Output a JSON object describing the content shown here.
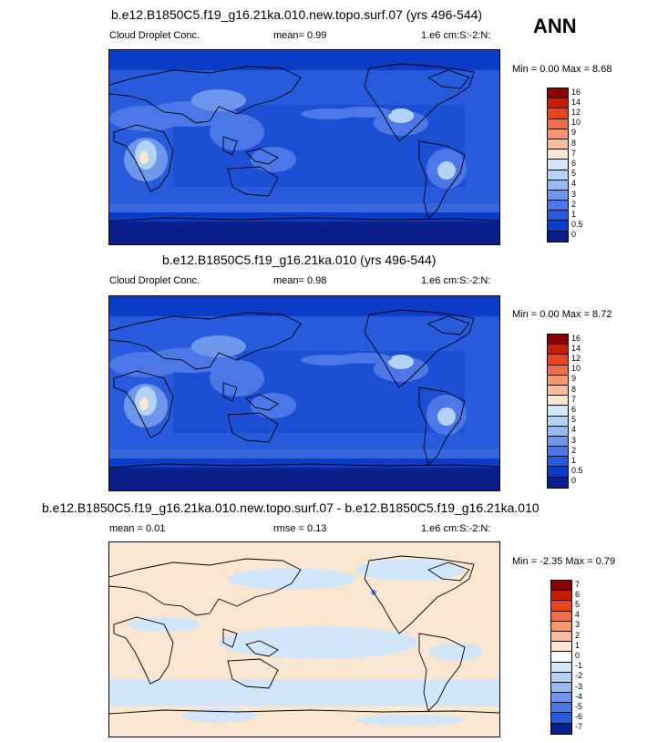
{
  "season": "ANN",
  "panels": [
    {
      "title": "b.e12.B1850C5.f19_g16.21ka.010.new.topo.surf.07 (yrs 496-544)",
      "left_label": "Cloud Droplet Conc.",
      "mid_label": "mean=   0.99",
      "right_label": "1.e6 cm:S:-2:N:",
      "minmax": "Min =   0.00  Max =   8.68",
      "colorbar": {
        "labels": [
          "16",
          "14",
          "12",
          "10",
          "9",
          "8",
          "7",
          "6",
          "5",
          "4",
          "3",
          "2",
          "1",
          "0.5",
          "0"
        ],
        "colors": [
          "#8c0000",
          "#c81e00",
          "#e8461e",
          "#f06e46",
          "#f5966e",
          "#f8be9c",
          "#fbe6d2",
          "#d2e6fa",
          "#b4d2f5",
          "#96b9f0",
          "#6e96eb",
          "#4b78e6",
          "#285adc",
          "#0a3cc8",
          "#0a1e8c"
        ]
      }
    },
    {
      "title": "b.e12.B1850C5.f19_g16.21ka.010 (yrs 496-544)",
      "left_label": "Cloud Droplet Conc.",
      "mid_label": "mean=   0.98",
      "right_label": "1.e6 cm:S:-2:N:",
      "minmax": "Min =   0.00  Max =   8.72",
      "colorbar": {
        "labels": [
          "16",
          "14",
          "12",
          "10",
          "9",
          "8",
          "7",
          "6",
          "5",
          "4",
          "3",
          "2",
          "1",
          "0.5",
          "0"
        ],
        "colors": [
          "#8c0000",
          "#c81e00",
          "#e8461e",
          "#f06e46",
          "#f5966e",
          "#f8be9c",
          "#fbe6d2",
          "#d2e6fa",
          "#b4d2f5",
          "#96b9f0",
          "#6e96eb",
          "#4b78e6",
          "#285adc",
          "#0a3cc8",
          "#0a1e8c"
        ]
      }
    },
    {
      "title": "b.e12.B1850C5.f19_g16.21ka.010.new.topo.surf.07 - b.e12.B1850C5.f19_g16.21ka.010",
      "left_label": "mean =   0.01",
      "mid_label": "rmse =   0.13",
      "right_label": "1.e6 cm:S:-2:N:",
      "minmax": "Min =  -2.35  Max =   0.79",
      "colorbar": {
        "labels": [
          "7",
          "6",
          "5",
          "4",
          "3",
          "2",
          "1",
          "0",
          "-1",
          "-2",
          "-3",
          "-4",
          "-5",
          "-6",
          "-7"
        ],
        "colors": [
          "#8c0000",
          "#c81e00",
          "#e8461e",
          "#f06e46",
          "#f5966e",
          "#f8be9c",
          "#fbe6d2",
          "#ffffff",
          "#d2e6fa",
          "#b4d2f5",
          "#96b9f0",
          "#6e96eb",
          "#4b78e6",
          "#285adc",
          "#0a1e8c"
        ]
      }
    }
  ],
  "chart_data": [
    {
      "type": "heatmap",
      "title": "b.e12.B1850C5.f19_g16.21ka.010.new.topo.surf.07 (yrs 496-544)",
      "variable": "Cloud Droplet Conc.",
      "units": "1.e6 cm:S:-2:N:",
      "mean": 0.99,
      "min": 0.0,
      "max": 8.68
    },
    {
      "type": "heatmap",
      "title": "b.e12.B1850C5.f19_g16.21ka.010 (yrs 496-544)",
      "variable": "Cloud Droplet Conc.",
      "units": "1.e6 cm:S:-2:N:",
      "mean": 0.98,
      "min": 0.0,
      "max": 8.72
    },
    {
      "type": "heatmap",
      "title": "b.e12.B1850C5.f19_g16.21ka.010.new.topo.surf.07 - b.e12.B1850C5.f19_g16.21ka.010",
      "units": "1.e6 cm:S:-2:N:",
      "mean": 0.01,
      "rmse": 0.13,
      "min": -2.35,
      "max": 0.79
    }
  ]
}
